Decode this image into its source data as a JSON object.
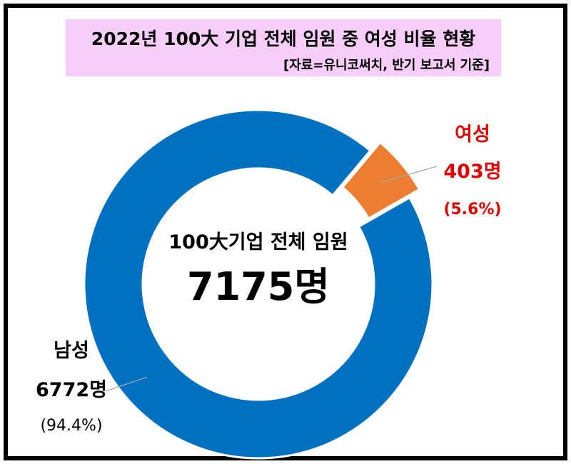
{
  "header": {
    "title": "2022년 100大 기업 전체 임원 중 여성 비율 현황",
    "subtitle": "[자료=유니코써치, 반기 보고서 기준]"
  },
  "chart_data": {
    "type": "pie",
    "variant": "donut",
    "center_label": "100大기업 전체 임원",
    "center_value": "7175명",
    "total": 7175,
    "slices": [
      {
        "name": "여성",
        "value": 403,
        "value_label": "403명",
        "percent_label": "(5.6%)",
        "color": "#ed7d31",
        "label_color": "#e00000",
        "exploded": true
      },
      {
        "name": "남성",
        "value": 6772,
        "value_label": "6772명",
        "percent_label": "(94.4%)",
        "color": "#0070c0",
        "label_color": "#000000",
        "exploded": false
      }
    ]
  }
}
